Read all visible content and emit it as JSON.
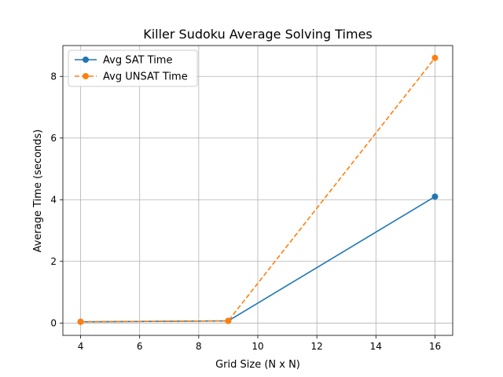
{
  "chart_data": {
    "type": "line",
    "title": "Killer Sudoku Average Solving Times",
    "xlabel": "Grid Size (N x N)",
    "ylabel": "Average Time (seconds)",
    "x": [
      4,
      9,
      16
    ],
    "series": [
      {
        "name": "Avg SAT Time",
        "values": [
          0.04,
          0.07,
          4.1
        ],
        "color": "#1f77b4",
        "dash": "solid"
      },
      {
        "name": "Avg UNSAT Time",
        "values": [
          0.04,
          0.07,
          8.6
        ],
        "color": "#ff7f0e",
        "dash": "dashed"
      }
    ],
    "xlim": [
      3.4,
      16.6
    ],
    "ylim": [
      -0.4,
      9.0
    ],
    "xticks": [
      4,
      6,
      8,
      10,
      12,
      14,
      16
    ],
    "yticks": [
      0,
      2,
      4,
      6,
      8
    ],
    "grid": true,
    "legend_position": "top-left"
  }
}
